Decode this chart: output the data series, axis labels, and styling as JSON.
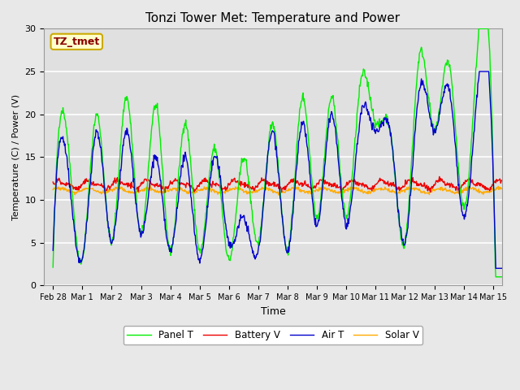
{
  "title": "Tonzi Tower Met: Temperature and Power",
  "xlabel": "Time",
  "ylabel": "Temperature (C) / Power (V)",
  "ylim": [
    0,
    30
  ],
  "yticks": [
    0,
    5,
    10,
    15,
    20,
    25,
    30
  ],
  "xtick_labels": [
    "Feb 28",
    "Mar 1",
    "Mar 2",
    "Mar 3",
    "Mar 4",
    "Mar 5",
    "Mar 6",
    "Mar 7",
    "Mar 8",
    "Mar 9",
    "Mar 10",
    "Mar 11",
    "Mar 12",
    "Mar 13",
    "Mar 14",
    "Mar 15"
  ],
  "annotation_text": "TZ_tmet",
  "annotation_bg": "#ffffcc",
  "annotation_border": "#ccaa00",
  "annotation_text_color": "#880000",
  "bg_color": "#e8e8e8",
  "plot_bg_color": "#e0e0e0",
  "grid_color": "#ffffff",
  "colors": {
    "panel_t": "#00ee00",
    "battery_v": "#ee0000",
    "air_t": "#0000cc",
    "solar_v": "#ffaa00"
  },
  "legend_labels": [
    "Panel T",
    "Battery V",
    "Air T",
    "Solar V"
  ],
  "title_fontsize": 11,
  "panel_peaks": [
    2,
    17,
    3,
    20,
    5,
    22,
    6,
    21,
    4,
    19,
    4,
    16,
    3,
    15,
    5,
    19,
    4,
    22,
    8,
    22,
    8,
    24,
    19,
    18,
    5,
    27,
    18,
    26,
    9,
    29,
    15
  ],
  "air_peaks": [
    4,
    14,
    3,
    18,
    5,
    18,
    6,
    15,
    4,
    15,
    3,
    15,
    5,
    8,
    4,
    18,
    4,
    19,
    7,
    20,
    7,
    20,
    18,
    18,
    5,
    23,
    18,
    23,
    8,
    24,
    14
  ]
}
